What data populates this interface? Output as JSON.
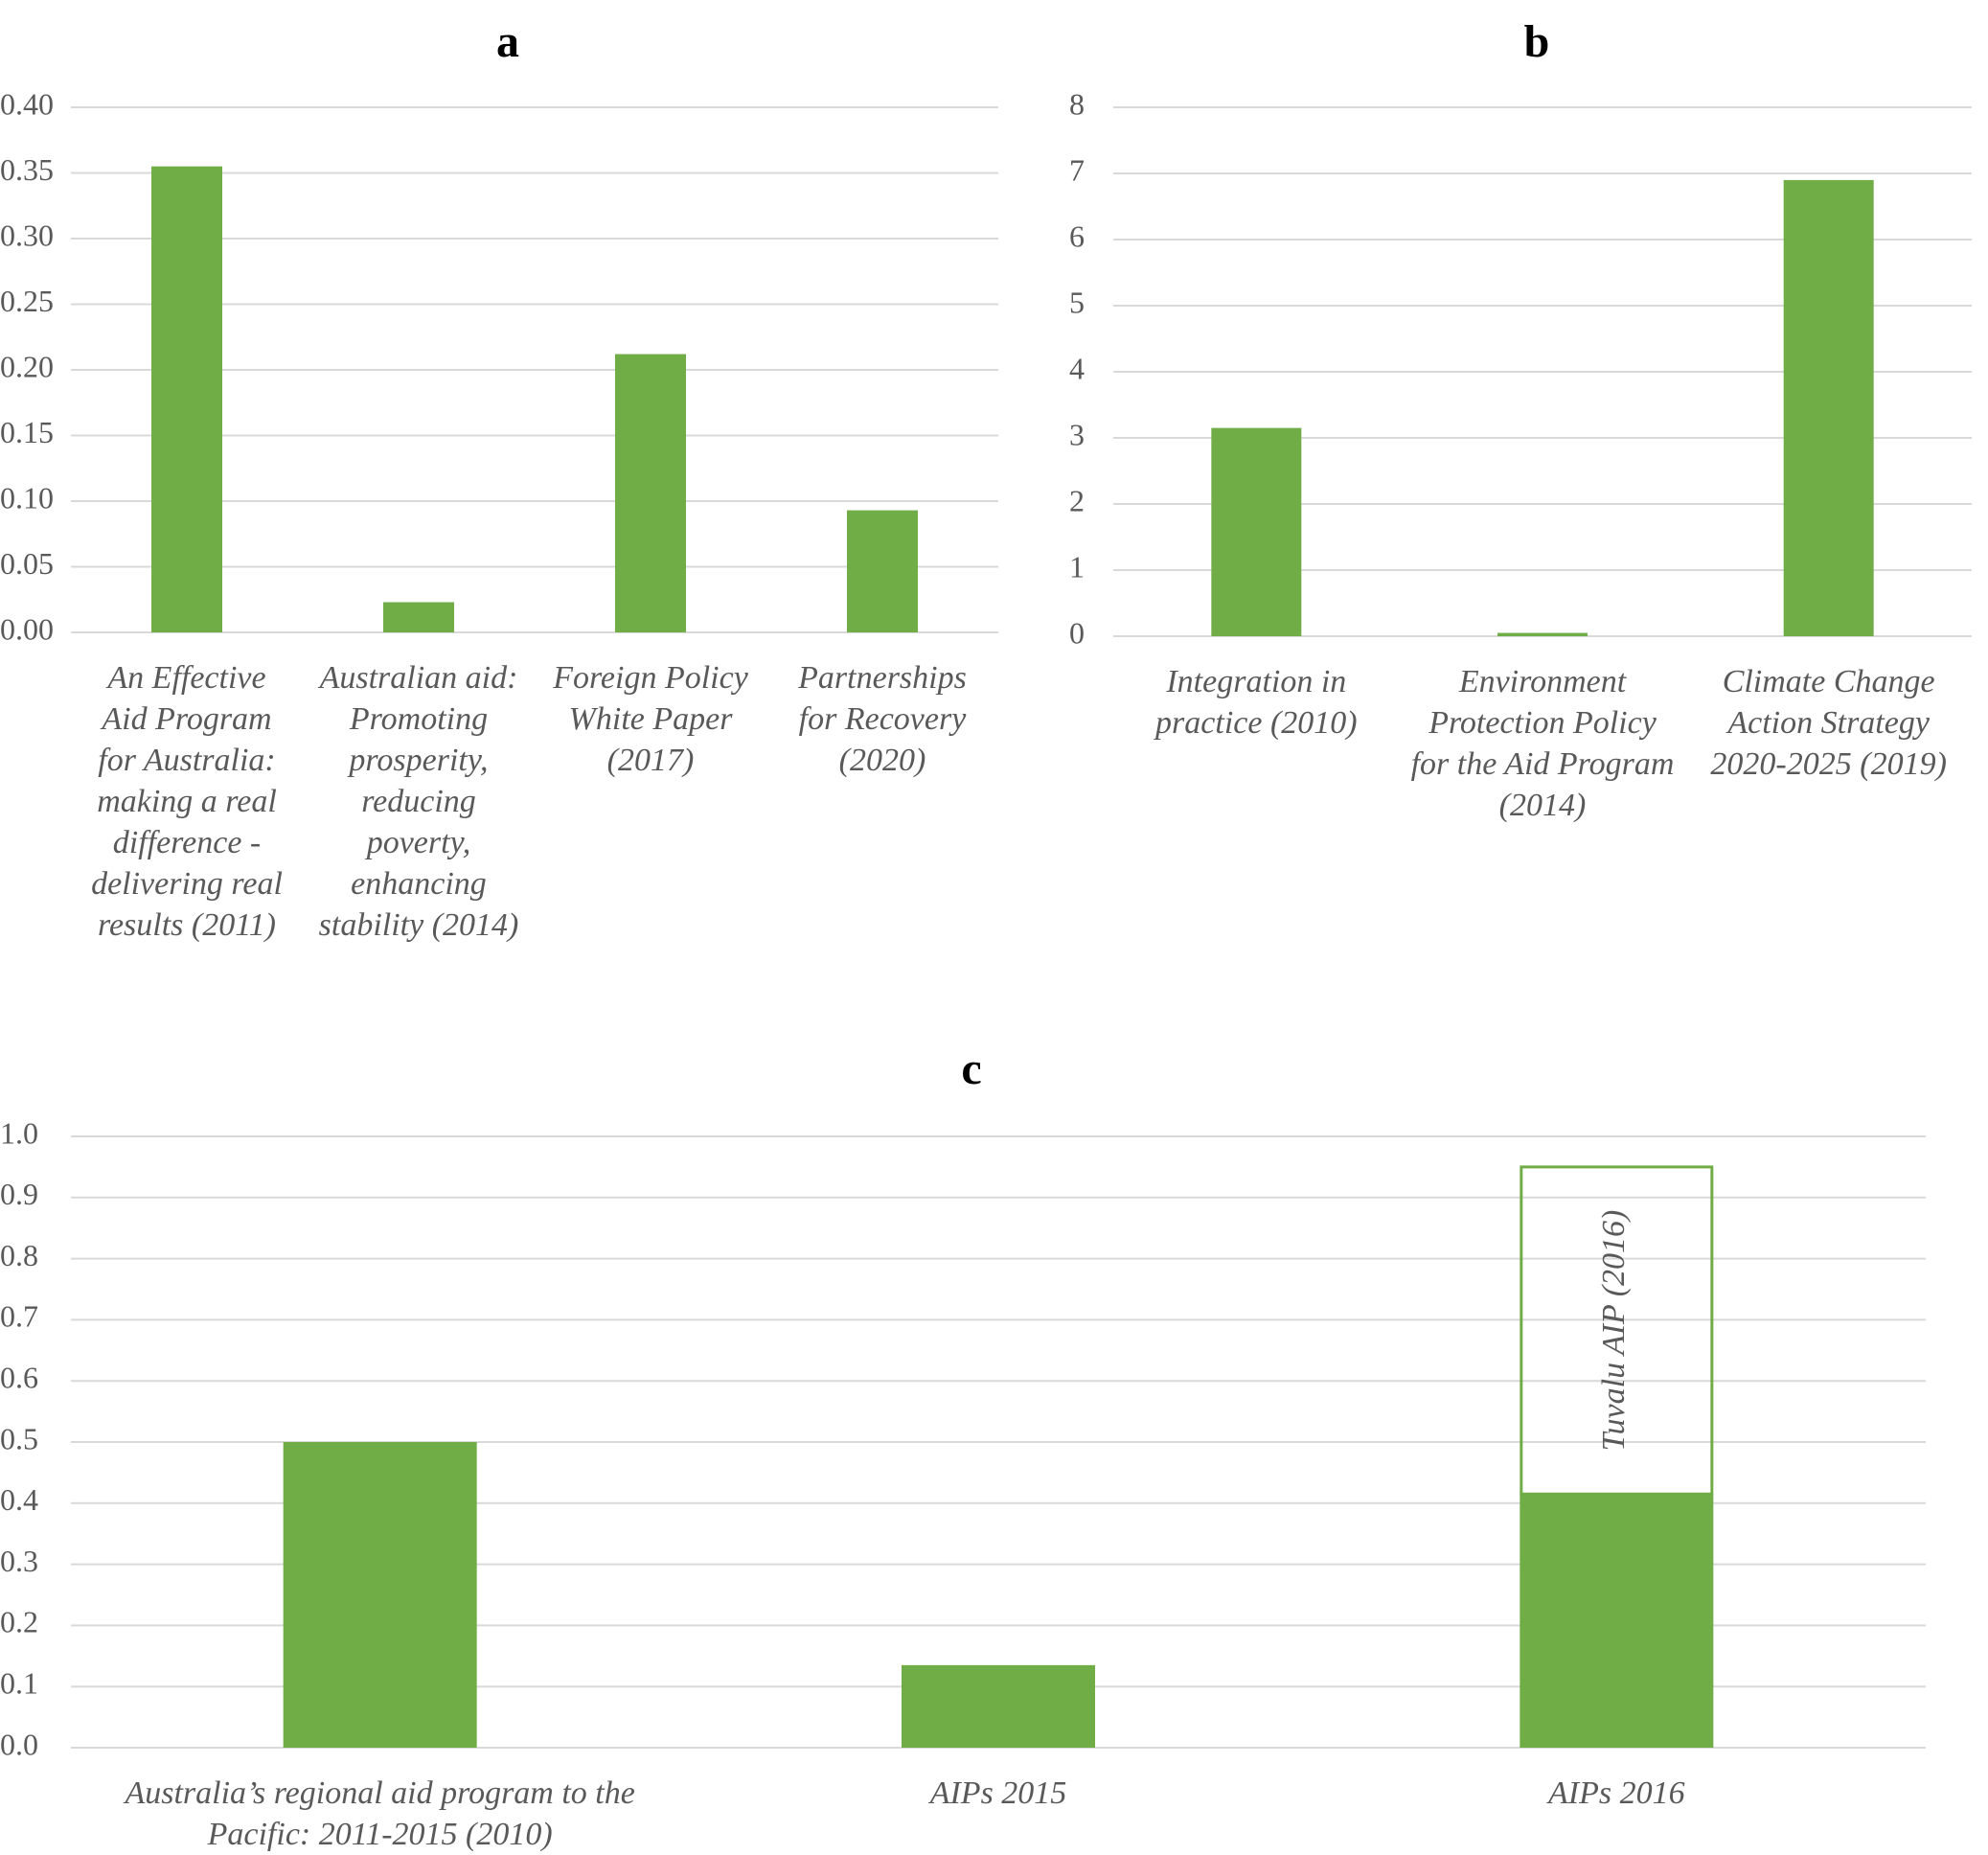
{
  "chart_data": [
    {
      "type": "bar",
      "title": "a",
      "categories": [
        "An Effective Aid Program for Australia: making a real difference - delivering real results (2011)",
        "Australian aid: Promoting prosperity, reducing poverty, enhancing stability (2014)",
        "Foreign Policy White Paper (2017)",
        "Partnerships for Recovery (2020)"
      ],
      "category_lines": [
        [
          "An Effective",
          "Aid Program",
          "for Australia:",
          "making a real",
          "difference -",
          "delivering real",
          "results (2011)"
        ],
        [
          "Australian aid:",
          "Promoting",
          "prosperity,",
          "reducing",
          "poverty,",
          "enhancing",
          "stability (2014)"
        ],
        [
          "Foreign Policy",
          "White Paper",
          "(2017)"
        ],
        [
          "Partnerships",
          "for Recovery",
          "(2020)"
        ]
      ],
      "values": [
        0.355,
        0.023,
        0.212,
        0.093
      ],
      "ylim": [
        0,
        0.4
      ],
      "yticks": [
        "0.00",
        "0.05",
        "0.10",
        "0.15",
        "0.20",
        "0.25",
        "0.30",
        "0.35",
        "0.40"
      ],
      "grid": true,
      "color": "#70ad47"
    },
    {
      "type": "bar",
      "title": "b",
      "categories": [
        "Integration in practice (2010)",
        "Environment Protection Policy for the Aid Program (2014)",
        "Climate Change Action Strategy 2020-2025 (2019)"
      ],
      "category_lines": [
        [
          "Integration in",
          "practice (2010)"
        ],
        [
          "Environment",
          "Protection Policy",
          "for the Aid Program",
          "(2014)"
        ],
        [
          "Climate Change",
          "Action Strategy",
          "2020-2025 (2019)"
        ]
      ],
      "values": [
        3.15,
        0.05,
        6.9
      ],
      "ylim": [
        0,
        8
      ],
      "yticks": [
        "0",
        "1",
        "2",
        "3",
        "4",
        "5",
        "6",
        "7",
        "8"
      ],
      "grid": true,
      "color": "#70ad47"
    },
    {
      "type": "bar",
      "title": "c",
      "categories": [
        "Australia’s regional aid program to the Pacific: 2011-2015 (2010)",
        "AIPs 2015",
        "AIPs 2016"
      ],
      "category_lines": [
        [
          "Australia’s regional aid program to the",
          "Pacific: 2011-2015 (2010)"
        ],
        [
          "AIPs 2015"
        ],
        [
          "AIPs 2016"
        ]
      ],
      "values": [
        0.5,
        0.135,
        0.415
      ],
      "outlined_bar": {
        "category": "AIPs 2016",
        "value": 0.95,
        "label": "Tuvalu AIP (2016)"
      },
      "ylim": [
        0,
        1.0
      ],
      "yticks": [
        "0.0",
        "0.1",
        "0.2",
        "0.3",
        "0.4",
        "0.5",
        "0.6",
        "0.7",
        "0.8",
        "0.9",
        "1.0"
      ],
      "grid": true,
      "color": "#70ad47"
    }
  ]
}
